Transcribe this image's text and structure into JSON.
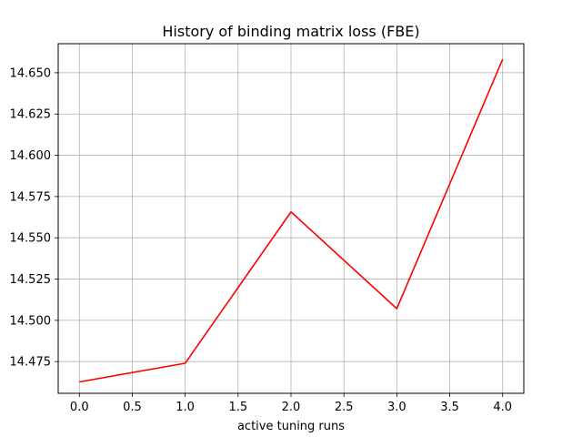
{
  "chart_data": {
    "type": "line",
    "title": "History of binding matrix loss (FBE)",
    "xlabel": "active tuning runs",
    "ylabel": "",
    "xlim": [
      -0.2,
      4.2
    ],
    "ylim": [
      14.4558,
      14.6676
    ],
    "x_ticks": [
      0.0,
      0.5,
      1.0,
      1.5,
      2.0,
      2.5,
      3.0,
      3.5,
      4.0
    ],
    "x_tick_labels": [
      "0.0",
      "0.5",
      "1.0",
      "1.5",
      "2.0",
      "2.5",
      "3.0",
      "3.5",
      "4.0"
    ],
    "y_ticks": [
      14.475,
      14.5,
      14.525,
      14.55,
      14.575,
      14.6,
      14.625,
      14.65
    ],
    "y_tick_labels": [
      "14.475",
      "14.500",
      "14.525",
      "14.550",
      "14.575",
      "14.600",
      "14.625",
      "14.650"
    ],
    "grid": true,
    "series": [
      {
        "color": "#ff0000",
        "x": [
          0,
          1,
          2,
          3,
          4
        ],
        "y": [
          14.4627,
          14.474,
          14.5657,
          14.5071,
          14.6582
        ]
      }
    ]
  }
}
